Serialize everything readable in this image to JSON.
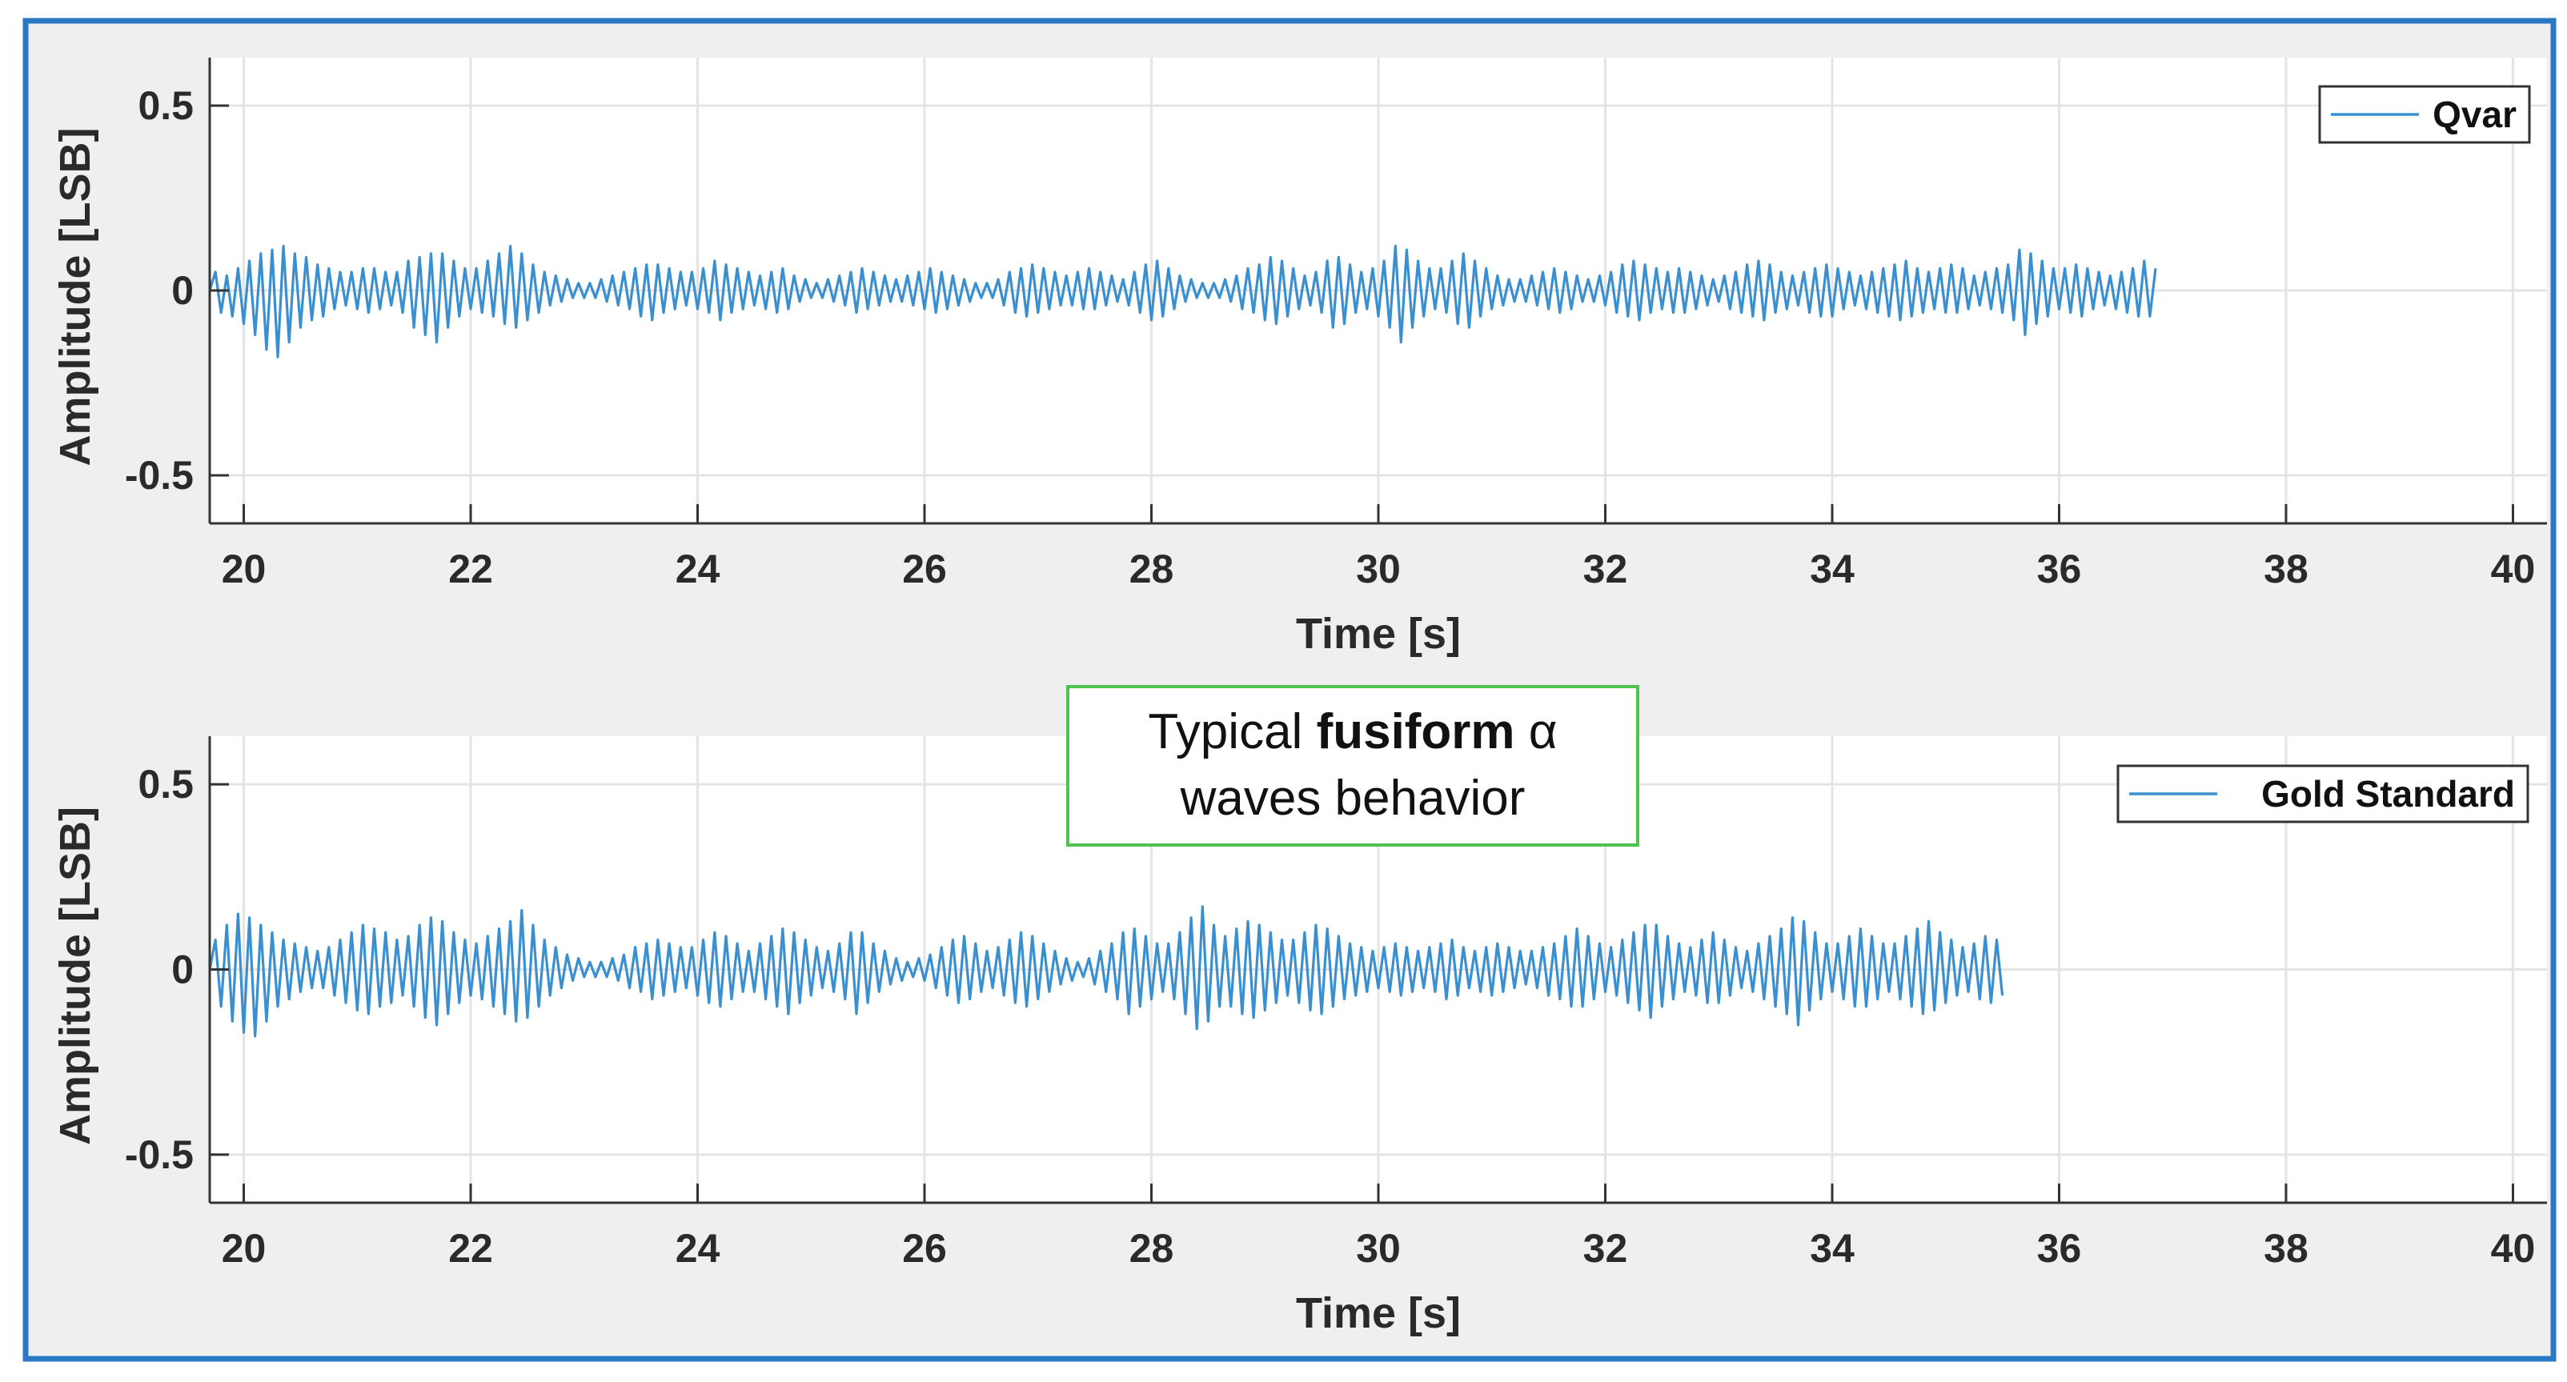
{
  "annotation": {
    "pre": "Typical ",
    "bold": "fusiform",
    "post": " α",
    "line2": "waves behavior"
  },
  "chart_data": [
    {
      "type": "line",
      "xlabel": "Time [s]",
      "ylabel": "Amplitude [LSB]",
      "xlim": [
        19.7,
        40.3
      ],
      "ylim": [
        -0.63,
        0.63
      ],
      "xticks": [
        20,
        22,
        24,
        26,
        28,
        30,
        32,
        34,
        36,
        38,
        40
      ],
      "yticks": [
        0.5,
        0,
        -0.5
      ],
      "ytick_labels": [
        "0.5",
        "0",
        "-0.5"
      ],
      "grid": true,
      "legend_position": "top-right",
      "line_color": "#3a8fd0",
      "series": [
        {
          "name": "Qvar",
          "sampling": "dense EEG trace, values sampled every 0.05 s from t=19.70 s",
          "x_start": 19.7,
          "x_step": 0.05,
          "values": [
            0.0,
            0.05,
            -0.06,
            0.04,
            -0.07,
            0.06,
            -0.09,
            0.08,
            -0.12,
            0.1,
            -0.16,
            0.11,
            -0.18,
            0.12,
            -0.14,
            0.1,
            -0.1,
            0.09,
            -0.08,
            0.07,
            -0.07,
            0.06,
            -0.05,
            0.05,
            -0.04,
            0.05,
            -0.05,
            0.06,
            -0.06,
            0.06,
            -0.05,
            0.05,
            -0.04,
            0.05,
            -0.06,
            0.08,
            -0.1,
            0.09,
            -0.12,
            0.1,
            -0.14,
            0.1,
            -0.1,
            0.08,
            -0.07,
            0.06,
            -0.05,
            0.06,
            -0.06,
            0.08,
            -0.07,
            0.1,
            -0.09,
            0.12,
            -0.1,
            0.1,
            -0.08,
            0.07,
            -0.06,
            0.05,
            -0.04,
            0.04,
            -0.03,
            0.03,
            -0.02,
            0.02,
            -0.02,
            0.02,
            -0.02,
            0.03,
            -0.03,
            0.04,
            -0.04,
            0.05,
            -0.05,
            0.06,
            -0.07,
            0.07,
            -0.08,
            0.07,
            -0.06,
            0.06,
            -0.05,
            0.05,
            -0.04,
            0.05,
            -0.05,
            0.06,
            -0.06,
            0.08,
            -0.08,
            0.07,
            -0.06,
            0.06,
            -0.05,
            0.05,
            -0.04,
            0.04,
            -0.05,
            0.05,
            -0.06,
            0.06,
            -0.05,
            0.04,
            -0.03,
            0.03,
            -0.02,
            0.02,
            -0.02,
            0.03,
            -0.03,
            0.04,
            -0.04,
            0.05,
            -0.06,
            0.06,
            -0.05,
            0.05,
            -0.04,
            0.04,
            -0.03,
            0.03,
            -0.03,
            0.04,
            -0.04,
            0.05,
            -0.05,
            0.06,
            -0.06,
            0.05,
            -0.05,
            0.04,
            -0.04,
            0.03,
            -0.03,
            0.02,
            -0.02,
            0.02,
            -0.02,
            0.03,
            -0.04,
            0.05,
            -0.06,
            0.06,
            -0.07,
            0.07,
            -0.06,
            0.06,
            -0.05,
            0.05,
            -0.04,
            0.04,
            -0.04,
            0.05,
            -0.05,
            0.06,
            -0.05,
            0.05,
            -0.04,
            0.04,
            -0.03,
            0.03,
            -0.04,
            0.05,
            -0.06,
            0.07,
            -0.08,
            0.08,
            -0.07,
            0.06,
            -0.05,
            0.04,
            -0.03,
            0.03,
            -0.02,
            0.02,
            -0.02,
            0.02,
            -0.02,
            0.03,
            -0.03,
            0.04,
            -0.05,
            0.06,
            -0.06,
            0.07,
            -0.08,
            0.09,
            -0.09,
            0.08,
            -0.07,
            0.06,
            -0.05,
            0.04,
            -0.04,
            0.05,
            -0.06,
            0.08,
            -0.1,
            0.09,
            -0.09,
            0.07,
            -0.06,
            0.05,
            -0.05,
            0.06,
            -0.07,
            0.08,
            -0.1,
            0.12,
            -0.14,
            0.11,
            -0.1,
            0.08,
            -0.07,
            0.06,
            -0.05,
            0.06,
            -0.06,
            0.08,
            -0.09,
            0.1,
            -0.1,
            0.08,
            -0.07,
            0.06,
            -0.05,
            0.04,
            -0.04,
            0.03,
            -0.03,
            0.03,
            -0.03,
            0.04,
            -0.04,
            0.05,
            -0.05,
            0.06,
            -0.06,
            0.05,
            -0.05,
            0.04,
            -0.03,
            0.03,
            -0.03,
            0.04,
            -0.04,
            0.05,
            -0.06,
            0.07,
            -0.07,
            0.08,
            -0.08,
            0.07,
            -0.06,
            0.06,
            -0.05,
            0.05,
            -0.06,
            0.06,
            -0.06,
            0.05,
            -0.05,
            0.04,
            -0.04,
            0.03,
            -0.03,
            0.04,
            -0.05,
            0.05,
            -0.06,
            0.07,
            -0.07,
            0.08,
            -0.08,
            0.07,
            -0.06,
            0.05,
            -0.05,
            0.04,
            -0.04,
            0.05,
            -0.06,
            0.06,
            -0.07,
            0.07,
            -0.07,
            0.06,
            -0.05,
            0.05,
            -0.04,
            0.04,
            -0.05,
            0.05,
            -0.06,
            0.06,
            -0.07,
            0.07,
            -0.08,
            0.08,
            -0.07,
            0.06,
            -0.06,
            0.05,
            -0.05,
            0.06,
            -0.06,
            0.07,
            -0.06,
            0.06,
            -0.05,
            0.04,
            -0.04,
            0.05,
            -0.05,
            0.06,
            -0.06,
            0.07,
            -0.08,
            0.11,
            -0.12,
            0.1,
            -0.09,
            0.08,
            -0.07,
            0.06,
            -0.05,
            0.06,
            -0.06,
            0.07,
            -0.07,
            0.06,
            -0.05,
            0.05,
            -0.04,
            0.04,
            -0.05,
            0.05,
            -0.06,
            0.06,
            -0.07,
            0.08,
            -0.07,
            0.06
          ]
        }
      ]
    },
    {
      "type": "line",
      "xlabel": "Time [s]",
      "ylabel": "Amplitude [LSB]",
      "xlim": [
        19.7,
        40.3
      ],
      "ylim": [
        -0.63,
        0.63
      ],
      "xticks": [
        20,
        22,
        24,
        26,
        28,
        30,
        32,
        34,
        36,
        38,
        40
      ],
      "yticks": [
        0.5,
        0,
        -0.5
      ],
      "ytick_labels": [
        "0.5",
        "0",
        "-0.5"
      ],
      "grid": true,
      "legend_position": "top-right",
      "line_color": "#3a8fd0",
      "series": [
        {
          "name": "Gold Standard",
          "sampling": "dense EEG trace, values sampled every 0.05 s from t=19.70 s",
          "x_start": 19.7,
          "x_step": 0.05,
          "values": [
            0.0,
            0.08,
            -0.1,
            0.12,
            -0.14,
            0.15,
            -0.17,
            0.14,
            -0.18,
            0.12,
            -0.14,
            0.1,
            -0.1,
            0.08,
            -0.08,
            0.07,
            -0.06,
            0.06,
            -0.05,
            0.05,
            -0.05,
            0.06,
            -0.07,
            0.08,
            -0.09,
            0.1,
            -0.11,
            0.12,
            -0.12,
            0.11,
            -0.1,
            0.1,
            -0.09,
            0.08,
            -0.07,
            0.09,
            -0.1,
            0.12,
            -0.13,
            0.14,
            -0.15,
            0.13,
            -0.12,
            0.1,
            -0.09,
            0.08,
            -0.07,
            0.07,
            -0.08,
            0.09,
            -0.1,
            0.11,
            -0.12,
            0.13,
            -0.14,
            0.16,
            -0.13,
            0.12,
            -0.1,
            0.08,
            -0.07,
            0.06,
            -0.05,
            0.04,
            -0.03,
            0.03,
            -0.02,
            0.02,
            -0.02,
            0.02,
            -0.02,
            0.03,
            -0.03,
            0.04,
            -0.05,
            0.06,
            -0.06,
            0.07,
            -0.08,
            0.08,
            -0.07,
            0.07,
            -0.06,
            0.06,
            -0.05,
            0.06,
            -0.07,
            0.08,
            -0.09,
            0.1,
            -0.1,
            0.09,
            -0.08,
            0.07,
            -0.06,
            0.05,
            -0.06,
            0.07,
            -0.08,
            0.09,
            -0.1,
            0.11,
            -0.12,
            0.1,
            -0.09,
            0.08,
            -0.07,
            0.06,
            -0.05,
            0.05,
            -0.06,
            0.07,
            -0.08,
            0.1,
            -0.12,
            0.1,
            -0.09,
            0.07,
            -0.06,
            0.05,
            -0.04,
            0.03,
            -0.03,
            0.02,
            -0.02,
            0.03,
            -0.03,
            0.04,
            -0.05,
            0.06,
            -0.07,
            0.08,
            -0.09,
            0.09,
            -0.08,
            0.07,
            -0.06,
            0.05,
            -0.05,
            0.06,
            -0.07,
            0.08,
            -0.09,
            0.1,
            -0.1,
            0.09,
            -0.08,
            0.07,
            -0.06,
            0.05,
            -0.04,
            0.03,
            -0.03,
            0.02,
            -0.02,
            0.03,
            -0.04,
            0.05,
            -0.06,
            0.07,
            -0.08,
            0.1,
            -0.12,
            0.11,
            -0.1,
            0.09,
            -0.08,
            0.07,
            -0.06,
            0.07,
            -0.08,
            0.1,
            -0.12,
            0.14,
            -0.16,
            0.17,
            -0.14,
            0.12,
            -0.1,
            0.09,
            -0.1,
            0.11,
            -0.12,
            0.13,
            -0.13,
            0.12,
            -0.11,
            0.1,
            -0.09,
            0.08,
            -0.07,
            0.08,
            -0.09,
            0.1,
            -0.11,
            0.12,
            -0.12,
            0.11,
            -0.1,
            0.09,
            -0.08,
            0.07,
            -0.07,
            0.06,
            -0.06,
            0.05,
            -0.05,
            0.06,
            -0.06,
            0.07,
            -0.07,
            0.06,
            -0.06,
            0.05,
            -0.05,
            0.06,
            -0.06,
            0.07,
            -0.08,
            0.08,
            -0.07,
            0.06,
            -0.05,
            0.05,
            -0.06,
            0.06,
            -0.07,
            0.07,
            -0.06,
            0.06,
            -0.05,
            0.05,
            -0.04,
            0.05,
            -0.05,
            0.06,
            -0.07,
            0.07,
            -0.08,
            0.09,
            -0.1,
            0.11,
            -0.1,
            0.09,
            -0.08,
            0.07,
            -0.06,
            0.06,
            -0.07,
            0.08,
            -0.09,
            0.1,
            -0.11,
            0.12,
            -0.13,
            0.12,
            -0.1,
            0.09,
            -0.08,
            0.07,
            -0.06,
            0.06,
            -0.07,
            0.08,
            -0.09,
            0.1,
            -0.09,
            0.08,
            -0.07,
            0.06,
            -0.05,
            0.05,
            -0.06,
            0.07,
            -0.08,
            0.09,
            -0.1,
            0.11,
            -0.12,
            0.14,
            -0.15,
            0.13,
            -0.11,
            0.1,
            -0.08,
            0.07,
            -0.06,
            0.07,
            -0.08,
            0.09,
            -0.1,
            0.11,
            -0.1,
            0.09,
            -0.08,
            0.07,
            -0.06,
            0.07,
            -0.08,
            0.09,
            -0.1,
            0.11,
            -0.12,
            0.13,
            -0.11,
            0.1,
            -0.09,
            0.08,
            -0.07,
            0.06,
            -0.06,
            0.07,
            -0.08,
            0.09,
            -0.09,
            0.08,
            -0.07
          ]
        }
      ]
    }
  ]
}
